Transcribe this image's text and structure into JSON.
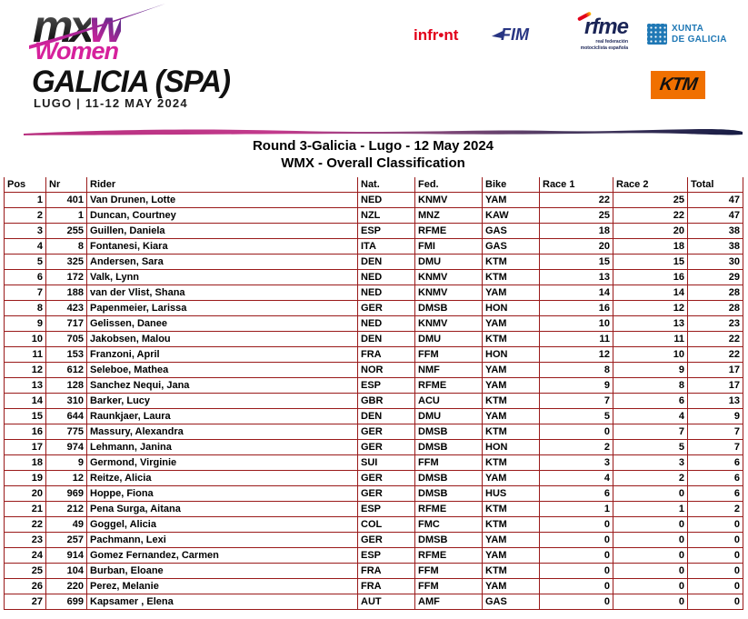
{
  "header": {
    "series_logo": {
      "part_mx": "mx",
      "part_w": "w",
      "part_women": "Women"
    },
    "event_title": "GALICIA (SPA)",
    "event_location_date": "LUGO | 11-12 MAY 2024",
    "sponsors": {
      "infront_label": "infr•nt",
      "fim_label": "FIM",
      "rfme_label": "rfme",
      "rfme_subline1": "real federación",
      "rfme_subline2": "motociclista española",
      "xunta_line1": "XUNTA",
      "xunta_line2": "DE GALICIA",
      "ktm_label": "KTM"
    }
  },
  "document": {
    "title_line1": "Round 3-Galicia - Lugo - 12 May 2024",
    "title_line2": "WMX - Overall Classification"
  },
  "colors": {
    "table_border": "#9a1a1a",
    "brand_magenta": "#d6219c",
    "infront_red": "#e2001a",
    "fim_blue": "#283583",
    "rfme_navy": "#1a2456",
    "xunta_blue": "#1f78b5",
    "ktm_orange": "#f07000",
    "brush_gradient_start": "#c23a8c",
    "brush_gradient_end": "#171c44"
  },
  "table": {
    "columns": [
      "Pos",
      "Nr",
      "Rider",
      "Nat.",
      "Fed.",
      "Bike",
      "Race 1",
      "Race 2",
      "Total"
    ],
    "column_keys": [
      "pos",
      "nr",
      "rider",
      "nat",
      "fed",
      "bike",
      "race1",
      "race2",
      "total"
    ],
    "rows": [
      [
        1,
        401,
        "Van Drunen, Lotte",
        "NED",
        "KNMV",
        "YAM",
        22,
        25,
        47
      ],
      [
        2,
        1,
        "Duncan, Courtney",
        "NZL",
        "MNZ",
        "KAW",
        25,
        22,
        47
      ],
      [
        3,
        255,
        "Guillen, Daniela",
        "ESP",
        "RFME",
        "GAS",
        18,
        20,
        38
      ],
      [
        4,
        8,
        "Fontanesi, Kiara",
        "ITA",
        "FMI",
        "GAS",
        20,
        18,
        38
      ],
      [
        5,
        325,
        "Andersen, Sara",
        "DEN",
        "DMU",
        "KTM",
        15,
        15,
        30
      ],
      [
        6,
        172,
        "Valk, Lynn",
        "NED",
        "KNMV",
        "KTM",
        13,
        16,
        29
      ],
      [
        7,
        188,
        "van der Vlist, Shana",
        "NED",
        "KNMV",
        "YAM",
        14,
        14,
        28
      ],
      [
        8,
        423,
        "Papenmeier, Larissa",
        "GER",
        "DMSB",
        "HON",
        16,
        12,
        28
      ],
      [
        9,
        717,
        "Gelissen, Danee",
        "NED",
        "KNMV",
        "YAM",
        10,
        13,
        23
      ],
      [
        10,
        705,
        "Jakobsen, Malou",
        "DEN",
        "DMU",
        "KTM",
        11,
        11,
        22
      ],
      [
        11,
        153,
        "Franzoni, April",
        "FRA",
        "FFM",
        "HON",
        12,
        10,
        22
      ],
      [
        12,
        612,
        "Seleboe, Mathea",
        "NOR",
        "NMF",
        "YAM",
        8,
        9,
        17
      ],
      [
        13,
        128,
        "Sanchez Nequi, Jana",
        "ESP",
        "RFME",
        "YAM",
        9,
        8,
        17
      ],
      [
        14,
        310,
        "Barker, Lucy",
        "GBR",
        "ACU",
        "KTM",
        7,
        6,
        13
      ],
      [
        15,
        644,
        "Raunkjaer, Laura",
        "DEN",
        "DMU",
        "YAM",
        5,
        4,
        9
      ],
      [
        16,
        775,
        "Massury, Alexandra",
        "GER",
        "DMSB",
        "KTM",
        0,
        7,
        7
      ],
      [
        17,
        974,
        "Lehmann, Janina",
        "GER",
        "DMSB",
        "HON",
        2,
        5,
        7
      ],
      [
        18,
        9,
        "Germond, Virginie",
        "SUI",
        "FFM",
        "KTM",
        3,
        3,
        6
      ],
      [
        19,
        12,
        "Reitze, Alicia",
        "GER",
        "DMSB",
        "YAM",
        4,
        2,
        6
      ],
      [
        20,
        969,
        "Hoppe, Fiona",
        "GER",
        "DMSB",
        "HUS",
        6,
        0,
        6
      ],
      [
        21,
        212,
        "Pena Surga, Aitana",
        "ESP",
        "RFME",
        "KTM",
        1,
        1,
        2
      ],
      [
        22,
        49,
        "Goggel, Alicia",
        "COL",
        "FMC",
        "KTM",
        0,
        0,
        0
      ],
      [
        23,
        257,
        "Pachmann, Lexi",
        "GER",
        "DMSB",
        "YAM",
        0,
        0,
        0
      ],
      [
        24,
        914,
        "Gomez Fernandez, Carmen",
        "ESP",
        "RFME",
        "YAM",
        0,
        0,
        0
      ],
      [
        25,
        104,
        "Burban, Eloane",
        "FRA",
        "FFM",
        "KTM",
        0,
        0,
        0
      ],
      [
        26,
        220,
        "Perez, Melanie",
        "FRA",
        "FFM",
        "YAM",
        0,
        0,
        0
      ],
      [
        27,
        699,
        "Kapsamer , Elena",
        "AUT",
        "AMF",
        "GAS",
        0,
        0,
        0
      ]
    ]
  }
}
